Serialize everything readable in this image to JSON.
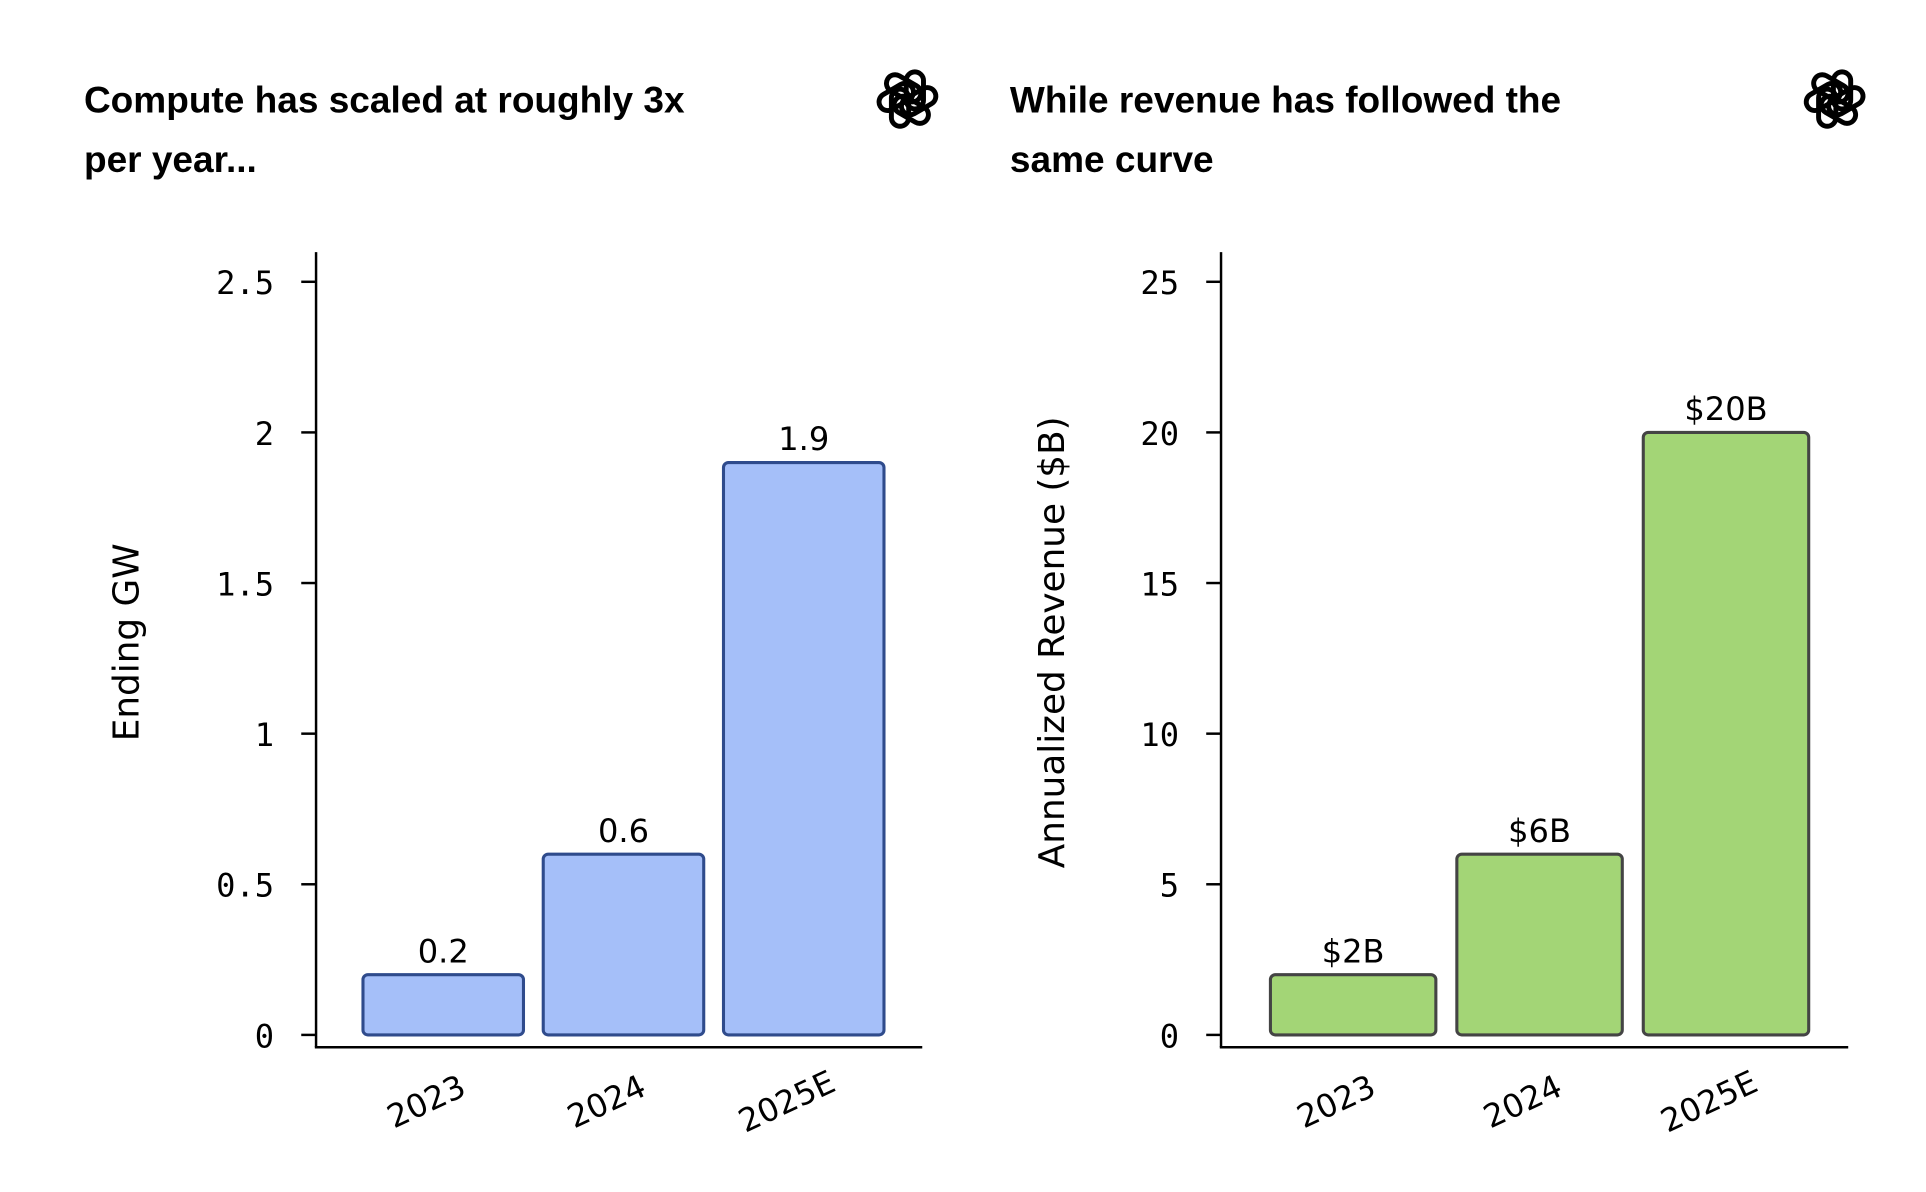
{
  "chart_data": [
    {
      "type": "bar",
      "title": [
        "Compute has scaled at roughly 3x",
        "per year..."
      ],
      "ylabel": "Ending GW",
      "categories": [
        "2023",
        "2024",
        "2025E"
      ],
      "values": [
        0.2,
        0.6,
        1.9
      ],
      "data_labels": [
        "0.2",
        "0.6",
        "1.9"
      ],
      "yticks": [
        0,
        0.5,
        1,
        1.5,
        2,
        2.5
      ],
      "ytick_labels": [
        "0",
        "0.5",
        "1",
        "1.5",
        "2",
        "2.5"
      ],
      "ylim": [
        0,
        2.5
      ],
      "grid": false,
      "colors": {
        "fill": "#a5bff9",
        "stroke": "#2f4b8c"
      },
      "icon": "openai-logo-icon"
    },
    {
      "type": "bar",
      "title": [
        "While revenue has followed the",
        "same curve"
      ],
      "ylabel": "Annualized Revenue ($B)",
      "categories": [
        "2023",
        "2024",
        "2025E"
      ],
      "values": [
        2,
        6,
        20
      ],
      "data_labels": [
        "$2B",
        "$6B",
        "$20B"
      ],
      "yticks": [
        0,
        5,
        10,
        15,
        20,
        25
      ],
      "ytick_labels": [
        "0",
        "5",
        "10",
        "15",
        "20",
        "25"
      ],
      "ylim": [
        0,
        25
      ],
      "grid": false,
      "colors": {
        "fill": "#a3d576",
        "stroke": "#444444"
      },
      "icon": "openai-logo-icon"
    }
  ]
}
